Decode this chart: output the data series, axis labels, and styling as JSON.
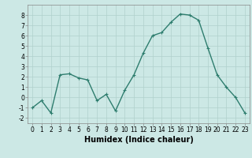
{
  "x": [
    0,
    1,
    2,
    3,
    4,
    5,
    6,
    7,
    8,
    9,
    10,
    11,
    12,
    13,
    14,
    15,
    16,
    17,
    18,
    19,
    20,
    21,
    22,
    23
  ],
  "y": [
    -1.0,
    -0.3,
    -1.5,
    2.2,
    2.3,
    1.9,
    1.7,
    -0.3,
    0.3,
    -1.3,
    0.7,
    2.2,
    4.3,
    6.0,
    6.3,
    7.3,
    8.1,
    8.0,
    7.5,
    4.8,
    2.2,
    1.0,
    0.0,
    -1.5
  ],
  "line_color": "#2e7d6e",
  "marker": "+",
  "marker_size": 3,
  "line_width": 1.0,
  "bg_color": "#cce8e5",
  "grid_color": "#b0d0cc",
  "xlabel": "Humidex (Indice chaleur)",
  "xlabel_fontsize": 7,
  "xlabel_fontweight": "bold",
  "ylim": [
    -2.5,
    9.0
  ],
  "xlim": [
    -0.5,
    23.5
  ],
  "yticks": [
    -2,
    -1,
    0,
    1,
    2,
    3,
    4,
    5,
    6,
    7,
    8
  ],
  "xticks": [
    0,
    1,
    2,
    3,
    4,
    5,
    6,
    7,
    8,
    9,
    10,
    11,
    12,
    13,
    14,
    15,
    16,
    17,
    18,
    19,
    20,
    21,
    22,
    23
  ],
  "tick_fontsize": 5.5,
  "spine_color": "#888888"
}
